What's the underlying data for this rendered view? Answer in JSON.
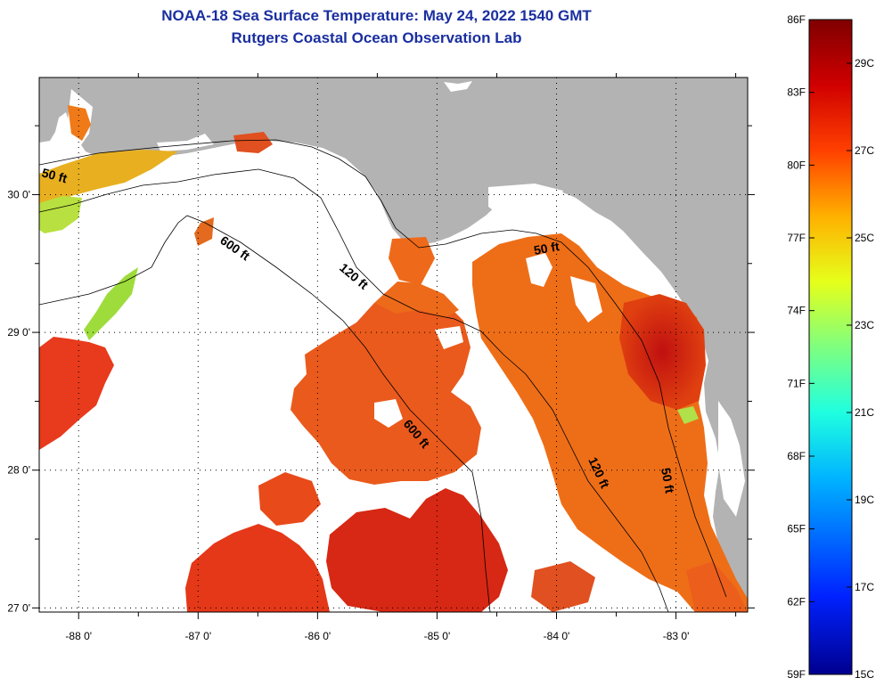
{
  "titles": {
    "line1": "NOAA-18 Sea Surface Temperature:  May 24, 2022 1540 GMT",
    "line2": "Rutgers Coastal Ocean Observation Lab"
  },
  "map": {
    "lon_ticks": [
      {
        "value": -88,
        "label": "-88 0'"
      },
      {
        "value": -87,
        "label": "-87 0'"
      },
      {
        "value": -86,
        "label": "-86 0'"
      },
      {
        "value": -85,
        "label": "-85 0'"
      },
      {
        "value": -84,
        "label": "-84 0'"
      },
      {
        "value": -83,
        "label": "-83 0'"
      }
    ],
    "lat_ticks": [
      {
        "value": 30,
        "label": "30 0'"
      },
      {
        "value": 29,
        "label": "29 0'"
      },
      {
        "value": 28,
        "label": "28 0'"
      },
      {
        "value": 27,
        "label": "27 0'"
      }
    ],
    "contour_labels": [
      {
        "id": "c50w",
        "text": "50 ft"
      },
      {
        "id": "c600n",
        "text": "600 ft"
      },
      {
        "id": "c120n",
        "text": "120 ft"
      },
      {
        "id": "c50n",
        "text": "50 ft"
      },
      {
        "id": "c600s",
        "text": "600 ft"
      },
      {
        "id": "c120s",
        "text": "120 ft"
      },
      {
        "id": "c50s",
        "text": "50 ft"
      }
    ],
    "colors": {
      "land": "#b3b3b3",
      "nodata": "#ffffff",
      "warm": "#e8421a",
      "hot": "#c41a12"
    }
  },
  "colorbar": {
    "f_labels": [
      "86F",
      "83F",
      "80F",
      "77F",
      "74F",
      "71F",
      "68F",
      "65F",
      "62F",
      "59F"
    ],
    "c_labels": [
      "29C",
      "27C",
      "25C",
      "23C",
      "21C",
      "19C",
      "17C",
      "15C"
    ],
    "colors": [
      "#00008f",
      "#0022ff",
      "#00b4ff",
      "#1fffe0",
      "#7fff7f",
      "#e6ff1a",
      "#ffb000",
      "#ff4000",
      "#d00000",
      "#800000"
    ]
  }
}
